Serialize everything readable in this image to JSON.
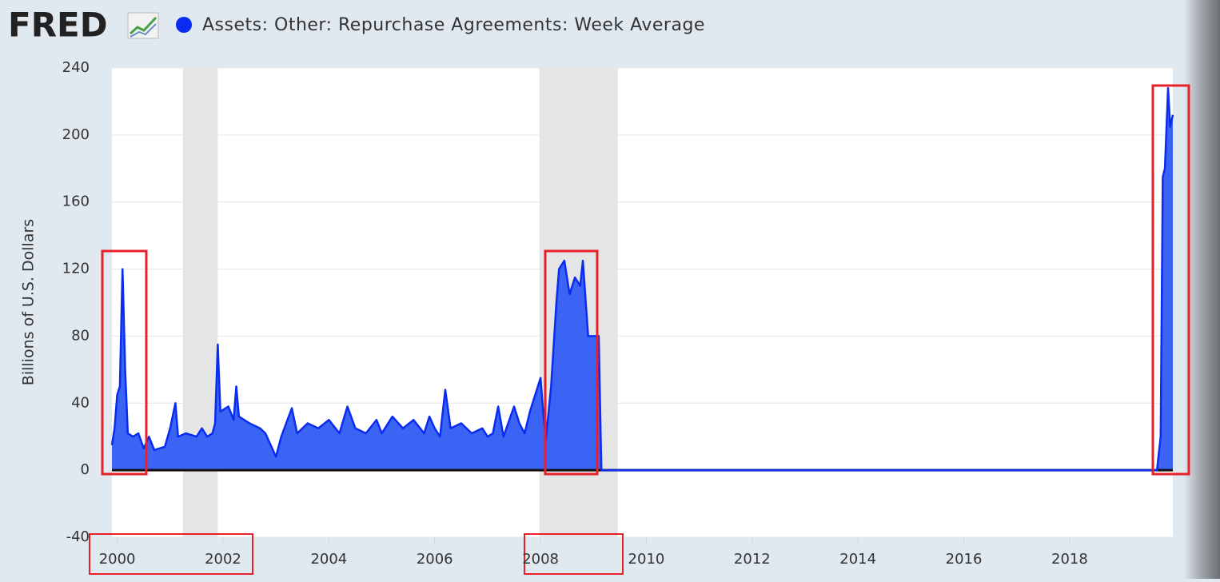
{
  "chart_data": {
    "type": "area",
    "logo": "FRED",
    "title": "Assets: Other: Repurchase Agreements: Week Average",
    "y_label": "Billions of U.S. Dollars",
    "series": [
      {
        "name": "Assets: Other: Repurchase Agreements: Week Average",
        "color": "#0a2cf0",
        "fill": "#3b64f4",
        "x": [
          1999.9,
          1999.95,
          2000.0,
          2000.05,
          2000.1,
          2000.15,
          2000.2,
          2000.3,
          2000.4,
          2000.5,
          2000.6,
          2000.7,
          2000.9,
          2001.0,
          2001.1,
          2001.15,
          2001.3,
          2001.5,
          2001.6,
          2001.7,
          2001.8,
          2001.85,
          2001.9,
          2001.95,
          2002.1,
          2002.2,
          2002.25,
          2002.3,
          2002.5,
          2002.7,
          2002.8,
          2002.9,
          2003.0,
          2003.1,
          2003.3,
          2003.4,
          2003.6,
          2003.8,
          2004.0,
          2004.2,
          2004.35,
          2004.5,
          2004.7,
          2004.9,
          2005.0,
          2005.2,
          2005.4,
          2005.6,
          2005.8,
          2005.9,
          2006.0,
          2006.1,
          2006.2,
          2006.3,
          2006.5,
          2006.7,
          2006.9,
          2007.0,
          2007.1,
          2007.2,
          2007.3,
          2007.5,
          2007.6,
          2007.7,
          2007.8,
          2007.9,
          2008.0,
          2008.05,
          2008.1,
          2008.2,
          2008.3,
          2008.35,
          2008.45,
          2008.55,
          2008.65,
          2008.75,
          2008.8,
          2008.9,
          2009.05,
          2009.1,
          2009.15,
          2010,
          2012,
          2014,
          2016,
          2018,
          2019.65,
          2019.72,
          2019.76,
          2019.8,
          2019.86,
          2019.9,
          2019.95
        ],
        "values": [
          15,
          25,
          45,
          50,
          120,
          60,
          22,
          20,
          22,
          13,
          20,
          12,
          14,
          25,
          40,
          20,
          22,
          20,
          25,
          20,
          22,
          28,
          75,
          35,
          38,
          30,
          50,
          32,
          28,
          25,
          22,
          15,
          8,
          20,
          37,
          22,
          28,
          25,
          30,
          22,
          38,
          25,
          22,
          30,
          22,
          32,
          25,
          30,
          22,
          32,
          25,
          20,
          48,
          25,
          28,
          22,
          25,
          20,
          22,
          38,
          20,
          38,
          28,
          22,
          35,
          45,
          55,
          35,
          18,
          50,
          100,
          120,
          125,
          105,
          115,
          110,
          125,
          80,
          80,
          80,
          0,
          0,
          0,
          0,
          0,
          0,
          0,
          20,
          175,
          180,
          228,
          205,
          212
        ]
      }
    ],
    "shaded_ranges": [
      [
        2001.24,
        2001.9
      ],
      [
        2007.98,
        2009.46
      ]
    ],
    "xlim": [
      1999.9,
      2019.95
    ],
    "xticks": [
      2000,
      2002,
      2004,
      2006,
      2008,
      2010,
      2012,
      2014,
      2016,
      2018
    ],
    "ylim": [
      -40,
      240
    ],
    "yticks": [
      -40,
      0,
      40,
      80,
      120,
      160,
      200,
      240
    ],
    "grid": true
  }
}
